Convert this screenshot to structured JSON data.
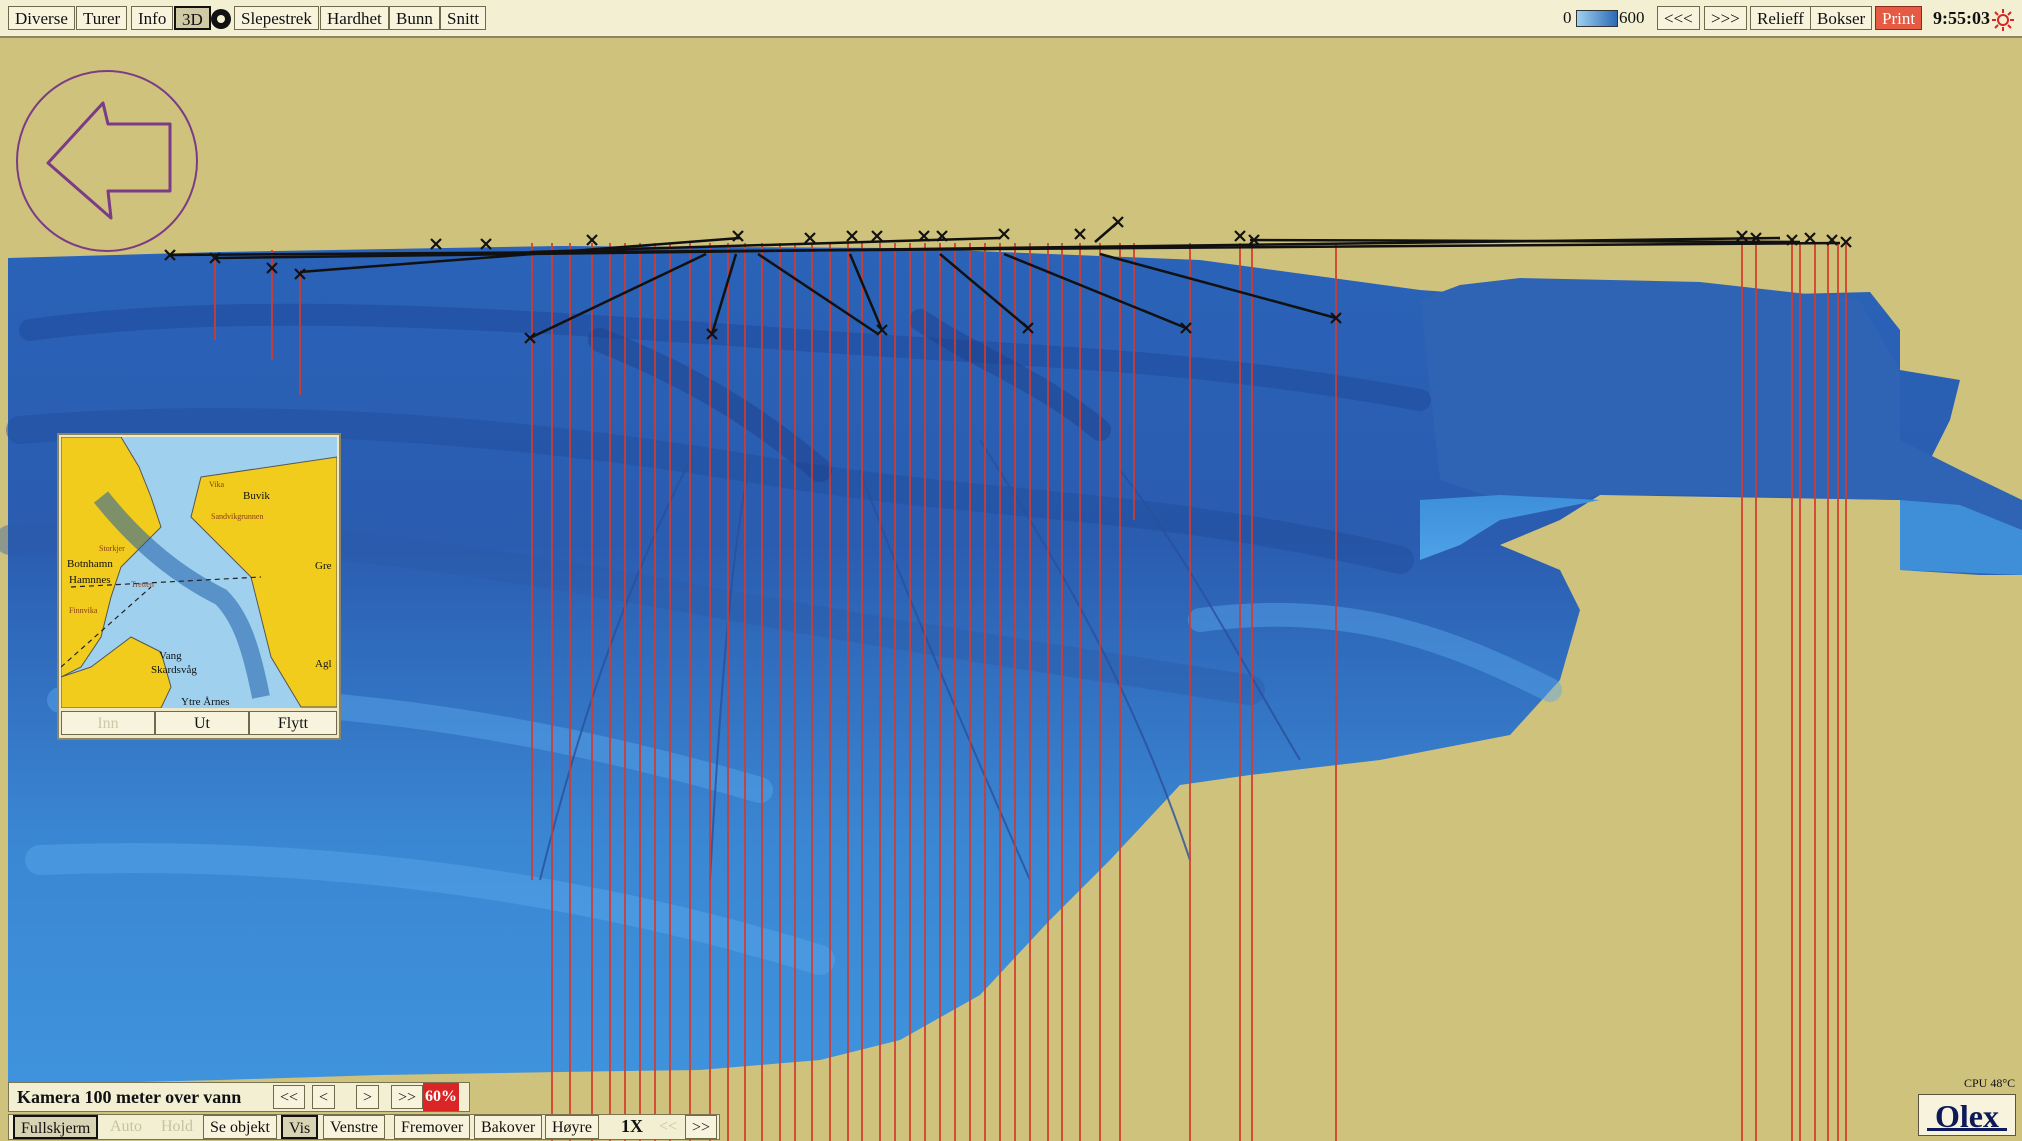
{
  "menu": {
    "items": [
      {
        "label": "Diverse"
      },
      {
        "label": "Turer"
      },
      {
        "label": "Info"
      },
      {
        "label": "3D"
      },
      {
        "label": "Slepestrek"
      },
      {
        "label": "Hardhet"
      },
      {
        "label": "Bunn"
      },
      {
        "label": "Snitt"
      }
    ],
    "active": "3D"
  },
  "depth_scale": {
    "min_label": "0",
    "max_label": "600"
  },
  "right_menu": {
    "prev_label": "<<<",
    "next_label": ">>>",
    "relief_label": "Relieff",
    "boxes_label": "Bokser",
    "print_label": "Print",
    "clock": "9:55:03"
  },
  "inset_map": {
    "labels": [
      "Buvik",
      "Vika",
      "Botnhamn",
      "Hamnnes",
      "Vang",
      "Skardsvåg",
      "Ytre Årnes",
      "Gre",
      "Agl",
      "Sandvikgrunnen",
      "Storkjer",
      "Tretten",
      "Finnvika"
    ],
    "buttons": {
      "zoom_in": "Inn",
      "zoom_out": "Ut",
      "move": "Flytt"
    }
  },
  "camera": {
    "text": "Kamera 100 meter over vann",
    "buttons": [
      "<<",
      "<",
      ">",
      ">>"
    ],
    "opacity": "60%"
  },
  "bottom_bar": {
    "fullscreen": "Fullskjerm",
    "auto": "Auto",
    "hold": "Hold",
    "see_object": "Se objekt",
    "show": "Vis",
    "left": "Venstre",
    "forward": "Fremover",
    "back": "Bakover",
    "right": "Høyre",
    "speed": "1X",
    "slower": "<<",
    "faster": ">>"
  },
  "status": {
    "cpu": "CPU 48°C",
    "brand": "Olex"
  },
  "colors": {
    "land": "#cfc27c",
    "water_light": "#4aa0e0",
    "water_dark": "#1e4a9c",
    "line": "#d63a2a",
    "accent": "#d92525"
  }
}
